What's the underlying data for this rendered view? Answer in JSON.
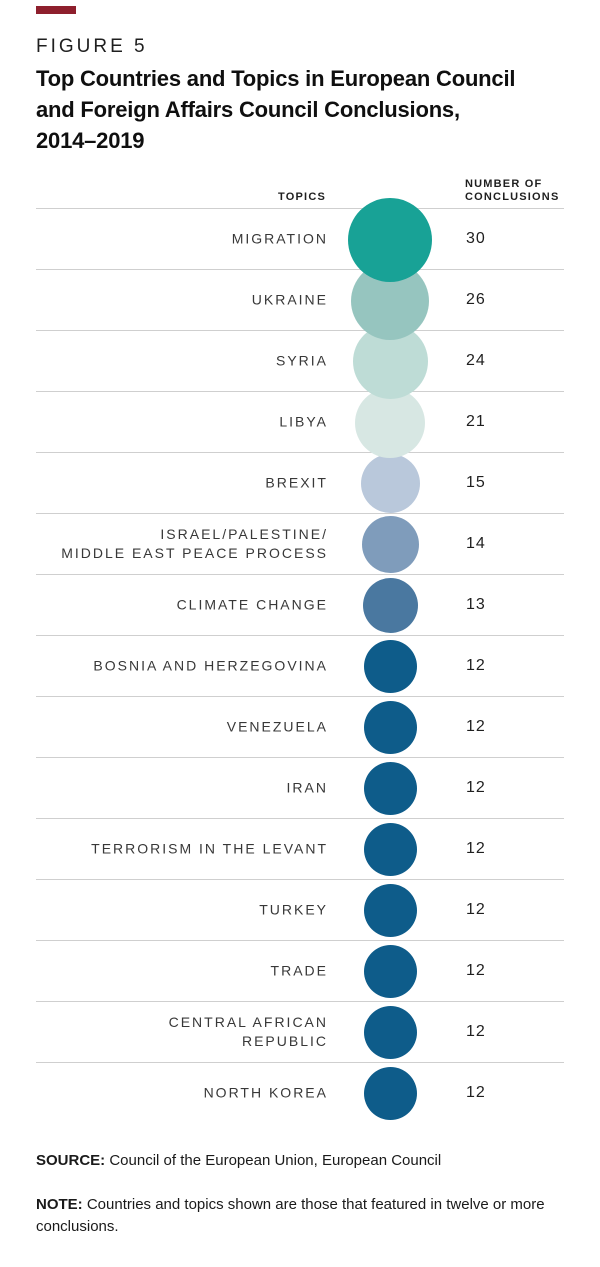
{
  "header": {
    "figure_label": "FIGURE 5",
    "title": "Top Countries and Topics in European Council\nand Foreign Affairs Council Conclusions,\n2014–2019",
    "accent_color": "#8e1f2d"
  },
  "table": {
    "topics_header": "TOPICS",
    "number_header": "NUMBER OF\nCONCLUSIONS"
  },
  "chart_data": {
    "type": "bar",
    "variant": "proportional-circle-list",
    "title": "Top Countries and Topics in European Council and Foreign Affairs Council Conclusions, 2014–2019",
    "xlabel": "TOPICS",
    "ylabel": "NUMBER OF CONCLUSIONS",
    "legend": "none",
    "grid": "horizontal-row-separators",
    "categories": [
      "MIGRATION",
      "UKRAINE",
      "SYRIA",
      "LIBYA",
      "BREXIT",
      "ISRAEL/PALESTINE/\nMIDDLE EAST PEACE PROCESS",
      "CLIMATE CHANGE",
      "BOSNIA AND HERZEGOVINA",
      "VENEZUELA",
      "IRAN",
      "TERRORISM IN THE LEVANT",
      "TURKEY",
      "TRADE",
      "CENTRAL AFRICAN\nREPUBLIC",
      "NORTH KOREA"
    ],
    "values": [
      30,
      26,
      24,
      21,
      15,
      14,
      13,
      12,
      12,
      12,
      12,
      12,
      12,
      12,
      12
    ],
    "colors": [
      "#18a296",
      "#96c5bf",
      "#bedcd6",
      "#d7e7e3",
      "#b9c8db",
      "#7f9cbb",
      "#4a78a0",
      "#0e5c8a",
      "#0e5c8a",
      "#0e5c8a",
      "#0e5c8a",
      "#0e5c8a",
      "#0e5c8a",
      "#0e5c8a",
      "#0e5c8a"
    ],
    "value_range": [
      12,
      30
    ]
  },
  "footer": {
    "source_label": "SOURCE:",
    "source_text": "Council of the European Union, European Council",
    "note_label": "NOTE:",
    "note_text": "Countries and topics shown are those that featured in twelve or more conclusions."
  }
}
